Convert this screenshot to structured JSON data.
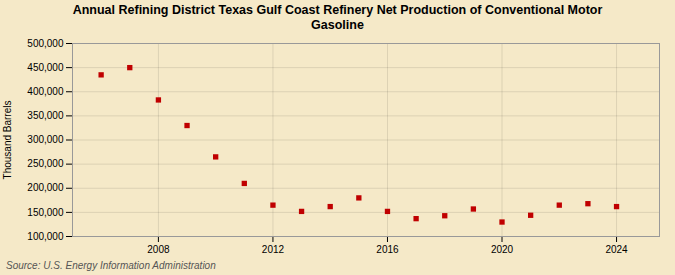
{
  "chart_data": {
    "type": "scatter",
    "title": "Annual Refining District Texas Gulf Coast Refinery Net Production of Conventional Motor\nGasoline",
    "ylabel": "Thousand Barrels",
    "source": "Source: U.S. Energy Information Administration",
    "x": [
      2006,
      2007,
      2008,
      2009,
      2010,
      2011,
      2012,
      2013,
      2014,
      2015,
      2016,
      2017,
      2018,
      2019,
      2020,
      2021,
      2022,
      2023,
      2024
    ],
    "values": [
      435000,
      450000,
      383000,
      330000,
      265000,
      210000,
      165000,
      152000,
      162000,
      180000,
      152000,
      137000,
      143000,
      157000,
      130000,
      144000,
      165000,
      168000,
      162000
    ],
    "color": "#c00000",
    "marker": "square",
    "xlim": [
      2005.0,
      2025.5
    ],
    "xticks": [
      2008,
      2012,
      2016,
      2020,
      2024
    ],
    "ylim": [
      100000,
      500000
    ],
    "yticks": [
      {
        "value": 100000,
        "label": "100,000"
      },
      {
        "value": 150000,
        "label": "150,000"
      },
      {
        "value": 200000,
        "label": "200,000"
      },
      {
        "value": 250000,
        "label": "250,000"
      },
      {
        "value": 300000,
        "label": "300,000"
      },
      {
        "value": 350000,
        "label": "350,000"
      },
      {
        "value": 400000,
        "label": "400,000"
      },
      {
        "value": 450000,
        "label": "450,000"
      },
      {
        "value": 500000,
        "label": "500,000"
      }
    ],
    "grid": true
  }
}
